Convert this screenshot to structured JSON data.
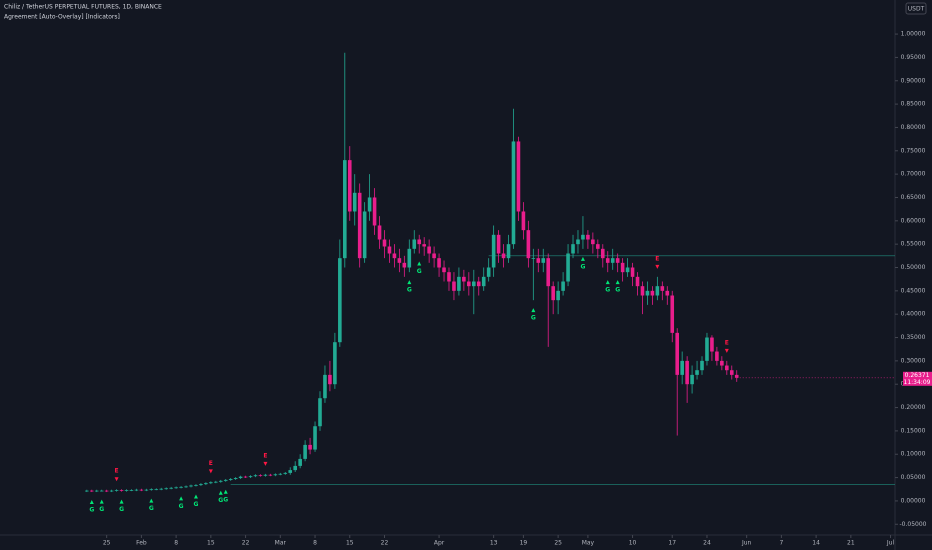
{
  "chart_data": {
    "type": "candlestick",
    "title": "Chiliz / TetherUS PERPETUAL FUTURES, 1D, BINANCE",
    "subtitle": "Agreement [Auto-Overlay] [Indicators]",
    "currency": "USDT",
    "countdown": "11:34:09",
    "up_color": "#22ab94",
    "down_color": "#e91e8c",
    "xlim": [
      -17.5,
      162.9
    ],
    "ylim": [
      -0.073,
      1.073
    ],
    "open": [
      0.021,
      0.022,
      0.021,
      0.022,
      0.022,
      0.021,
      0.022,
      0.023,
      0.022,
      0.023,
      0.023,
      0.024,
      0.023,
      0.024,
      0.025,
      0.025,
      0.026,
      0.027,
      0.028,
      0.029,
      0.03,
      0.031,
      0.033,
      0.034,
      0.036,
      0.038,
      0.04,
      0.041,
      0.043,
      0.045,
      0.047,
      0.049,
      0.052,
      0.051,
      0.053,
      0.055,
      0.054,
      0.056,
      0.055,
      0.057,
      0.058,
      0.06,
      0.066,
      0.075,
      0.09,
      0.12,
      0.11,
      0.16,
      0.22,
      0.27,
      0.25,
      0.34,
      0.52,
      0.73,
      0.62,
      0.66,
      0.52,
      0.62,
      0.65,
      0.59,
      0.56,
      0.545,
      0.53,
      0.52,
      0.51,
      0.5,
      0.54,
      0.56,
      0.55,
      0.545,
      0.53,
      0.52,
      0.5,
      0.49,
      0.47,
      0.45,
      0.48,
      0.47,
      0.46,
      0.47,
      0.46,
      0.48,
      0.5,
      0.57,
      0.53,
      0.52,
      0.55,
      0.77,
      0.62,
      0.58,
      0.52,
      0.52,
      0.51,
      0.52,
      0.46,
      0.43,
      0.45,
      0.47,
      0.53,
      0.55,
      0.56,
      0.57,
      0.56,
      0.55,
      0.54,
      0.52,
      0.51,
      0.52,
      0.51,
      0.49,
      0.5,
      0.48,
      0.46,
      0.44,
      0.45,
      0.44,
      0.46,
      0.45,
      0.44,
      0.36,
      0.27,
      0.3,
      0.25,
      0.27,
      0.28,
      0.3,
      0.35,
      0.32,
      0.3,
      0.29,
      0.28,
      0.27
    ],
    "high": [
      0.024,
      0.024,
      0.024,
      0.024,
      0.024,
      0.024,
      0.025,
      0.025,
      0.025,
      0.025,
      0.026,
      0.026,
      0.026,
      0.027,
      0.027,
      0.028,
      0.029,
      0.03,
      0.031,
      0.032,
      0.033,
      0.035,
      0.036,
      0.038,
      0.04,
      0.042,
      0.043,
      0.045,
      0.047,
      0.049,
      0.051,
      0.054,
      0.054,
      0.055,
      0.057,
      0.057,
      0.058,
      0.058,
      0.059,
      0.06,
      0.062,
      0.072,
      0.085,
      0.1,
      0.13,
      0.135,
      0.17,
      0.235,
      0.29,
      0.3,
      0.36,
      0.56,
      0.96,
      0.76,
      0.7,
      0.68,
      0.64,
      0.7,
      0.67,
      0.61,
      0.58,
      0.56,
      0.55,
      0.54,
      0.525,
      0.56,
      0.58,
      0.57,
      0.565,
      0.56,
      0.545,
      0.53,
      0.515,
      0.5,
      0.49,
      0.5,
      0.495,
      0.49,
      0.495,
      0.48,
      0.5,
      0.52,
      0.59,
      0.58,
      0.55,
      0.57,
      0.84,
      0.78,
      0.64,
      0.6,
      0.54,
      0.54,
      0.54,
      0.53,
      0.47,
      0.47,
      0.49,
      0.55,
      0.57,
      0.58,
      0.61,
      0.58,
      0.575,
      0.56,
      0.55,
      0.535,
      0.54,
      0.53,
      0.52,
      0.52,
      0.51,
      0.49,
      0.47,
      0.47,
      0.46,
      0.48,
      0.47,
      0.46,
      0.45,
      0.37,
      0.32,
      0.31,
      0.29,
      0.3,
      0.31,
      0.36,
      0.355,
      0.33,
      0.31,
      0.3,
      0.29,
      0.28
    ],
    "low": [
      0.019,
      0.019,
      0.019,
      0.02,
      0.019,
      0.019,
      0.02,
      0.02,
      0.02,
      0.021,
      0.021,
      0.021,
      0.021,
      0.022,
      0.023,
      0.023,
      0.024,
      0.025,
      0.026,
      0.027,
      0.028,
      0.029,
      0.031,
      0.032,
      0.034,
      0.036,
      0.038,
      0.039,
      0.041,
      0.043,
      0.045,
      0.047,
      0.049,
      0.049,
      0.051,
      0.052,
      0.052,
      0.053,
      0.053,
      0.055,
      0.056,
      0.056,
      0.062,
      0.07,
      0.085,
      0.1,
      0.105,
      0.15,
      0.21,
      0.235,
      0.24,
      0.33,
      0.5,
      0.6,
      0.59,
      0.5,
      0.51,
      0.6,
      0.57,
      0.54,
      0.52,
      0.51,
      0.5,
      0.49,
      0.48,
      0.49,
      0.53,
      0.53,
      0.525,
      0.51,
      0.5,
      0.48,
      0.47,
      0.45,
      0.43,
      0.44,
      0.45,
      0.44,
      0.4,
      0.44,
      0.45,
      0.47,
      0.48,
      0.51,
      0.5,
      0.51,
      0.54,
      0.6,
      0.56,
      0.5,
      0.43,
      0.49,
      0.49,
      0.33,
      0.4,
      0.4,
      0.44,
      0.46,
      0.52,
      0.53,
      0.54,
      0.54,
      0.53,
      0.52,
      0.5,
      0.49,
      0.495,
      0.49,
      0.47,
      0.48,
      0.46,
      0.44,
      0.4,
      0.42,
      0.42,
      0.43,
      0.43,
      0.42,
      0.34,
      0.14,
      0.25,
      0.21,
      0.23,
      0.26,
      0.27,
      0.29,
      0.3,
      0.29,
      0.28,
      0.27,
      0.26,
      0.255
    ],
    "close": [
      0.022,
      0.021,
      0.022,
      0.022,
      0.021,
      0.022,
      0.023,
      0.022,
      0.023,
      0.023,
      0.024,
      0.023,
      0.024,
      0.025,
      0.025,
      0.026,
      0.027,
      0.028,
      0.029,
      0.03,
      0.031,
      0.033,
      0.034,
      0.036,
      0.038,
      0.04,
      0.041,
      0.043,
      0.045,
      0.047,
      0.049,
      0.052,
      0.051,
      0.053,
      0.055,
      0.054,
      0.056,
      0.055,
      0.057,
      0.058,
      0.06,
      0.066,
      0.075,
      0.09,
      0.12,
      0.11,
      0.16,
      0.22,
      0.27,
      0.25,
      0.34,
      0.52,
      0.73,
      0.62,
      0.66,
      0.52,
      0.62,
      0.65,
      0.59,
      0.56,
      0.545,
      0.53,
      0.52,
      0.51,
      0.5,
      0.54,
      0.56,
      0.55,
      0.545,
      0.53,
      0.52,
      0.5,
      0.49,
      0.47,
      0.45,
      0.48,
      0.47,
      0.46,
      0.47,
      0.46,
      0.48,
      0.5,
      0.57,
      0.53,
      0.52,
      0.55,
      0.77,
      0.62,
      0.58,
      0.52,
      0.52,
      0.51,
      0.52,
      0.46,
      0.43,
      0.45,
      0.47,
      0.53,
      0.55,
      0.56,
      0.57,
      0.56,
      0.55,
      0.54,
      0.52,
      0.51,
      0.52,
      0.51,
      0.49,
      0.5,
      0.48,
      0.46,
      0.44,
      0.45,
      0.44,
      0.46,
      0.45,
      0.44,
      0.36,
      0.27,
      0.3,
      0.25,
      0.27,
      0.28,
      0.3,
      0.35,
      0.32,
      0.3,
      0.29,
      0.28,
      0.27,
      0.26371
    ],
    "levels": [
      {
        "value": 0.525,
        "from": 81
      },
      {
        "value": 0.035,
        "from": 29
      }
    ],
    "buy_signals": {
      "label": "G",
      "color": "#00e676",
      "x": [
        1,
        3,
        7,
        13,
        19,
        22,
        27,
        28,
        65,
        67,
        90,
        100,
        105,
        107
      ]
    },
    "sell_signals": {
      "label": "E",
      "color": "#ff1744",
      "x": [
        6,
        25,
        36,
        115,
        129
      ]
    },
    "yticks": [
      {
        "value": 1.0,
        "label": "1.00000"
      },
      {
        "value": 0.95,
        "label": "0.95000"
      },
      {
        "value": 0.9,
        "label": "0.90000"
      },
      {
        "value": 0.85,
        "label": "0.85000"
      },
      {
        "value": 0.8,
        "label": "0.80000"
      },
      {
        "value": 0.75,
        "label": "0.75000"
      },
      {
        "value": 0.7,
        "label": "0.70000"
      },
      {
        "value": 0.65,
        "label": "0.65000"
      },
      {
        "value": 0.6,
        "label": "0.60000"
      },
      {
        "value": 0.55,
        "label": "0.55000"
      },
      {
        "value": 0.5,
        "label": "0.50000"
      },
      {
        "value": 0.45,
        "label": "0.45000"
      },
      {
        "value": 0.4,
        "label": "0.40000"
      },
      {
        "value": 0.35,
        "label": "0.35000"
      },
      {
        "value": 0.3,
        "label": "0.30000"
      },
      {
        "value": 0.25,
        "label": "0.25000"
      },
      {
        "value": 0.2,
        "label": "0.20000"
      },
      {
        "value": 0.15,
        "label": "0.15000"
      },
      {
        "value": 0.1,
        "label": "0.10000"
      },
      {
        "value": 0.05,
        "label": "0.05000"
      },
      {
        "value": 0,
        "label": "0.00000"
      },
      {
        "value": -0.05,
        "label": "-0.05000"
      }
    ],
    "xticks": [
      {
        "value": 4,
        "label": "25"
      },
      {
        "value": 11,
        "label": "Feb"
      },
      {
        "value": 18,
        "label": "8"
      },
      {
        "value": 25,
        "label": "15"
      },
      {
        "value": 32,
        "label": "22"
      },
      {
        "value": 39,
        "label": "Mar"
      },
      {
        "value": 46,
        "label": "8"
      },
      {
        "value": 53,
        "label": "15"
      },
      {
        "value": 60,
        "label": "22"
      },
      {
        "value": 71,
        "label": "Apr"
      },
      {
        "value": 82,
        "label": "13"
      },
      {
        "value": 88,
        "label": "19"
      },
      {
        "value": 95,
        "label": "25"
      },
      {
        "value": 101,
        "label": "May"
      },
      {
        "value": 110,
        "label": "10"
      },
      {
        "value": 118,
        "label": "17"
      },
      {
        "value": 125,
        "label": "24"
      },
      {
        "value": 133,
        "label": "Jun"
      },
      {
        "value": 140,
        "label": "7"
      },
      {
        "value": 147,
        "label": "14"
      },
      {
        "value": 154,
        "label": "21"
      },
      {
        "value": 162,
        "label": "Jul"
      }
    ]
  }
}
